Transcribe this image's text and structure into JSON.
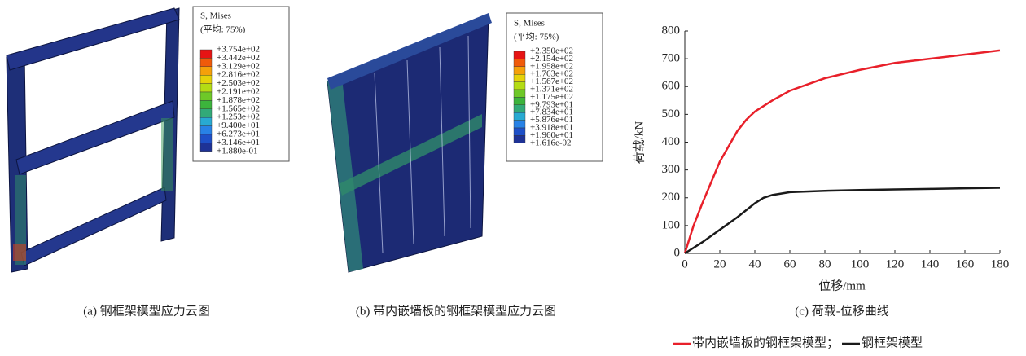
{
  "panel_a": {
    "caption": "(a) 钢框架模型应力云图",
    "legend_title": "S, Mises",
    "legend_subtitle": "(平均: 75%)",
    "legend_labels": [
      "+3.754e+02",
      "+3.442e+02",
      "+3.129e+02",
      "+2.816e+02",
      "+2.503e+02",
      "+2.191e+02",
      "+1.878e+02",
      "+1.565e+02",
      "+1.253e+02",
      "+9.400e+01",
      "+6.273e+01",
      "+3.146e+01",
      "+1.880e-01"
    ]
  },
  "panel_b": {
    "caption": "(b) 带内嵌墙板的钢框架模型应力云图",
    "legend_title": "S, Mises",
    "legend_subtitle": "(平均: 75%)",
    "legend_labels": [
      "+2.350e+02",
      "+2.154e+02",
      "+1.958e+02",
      "+1.763e+02",
      "+1.567e+02",
      "+1.371e+02",
      "+1.175e+02",
      "+9.793e+01",
      "+7.834e+01",
      "+5.876e+01",
      "+3.918e+01",
      "+1.960e+01",
      "+1.616e-02"
    ]
  },
  "chart_data": {
    "type": "line",
    "caption": "(c) 荷载-位移曲线",
    "xlabel": "位移/mm",
    "ylabel": "荷载/kN",
    "xlim": [
      0,
      180
    ],
    "xticks": [
      0,
      20,
      40,
      60,
      80,
      100,
      120,
      140,
      160,
      180
    ],
    "ylim": [
      0,
      800
    ],
    "yticks": [
      0,
      100,
      200,
      300,
      400,
      500,
      600,
      700,
      800
    ],
    "series": [
      {
        "name": "带内嵌墙板的钢框架模型；",
        "color": "#e8202a",
        "x": [
          0,
          5,
          10,
          20,
          30,
          35,
          40,
          50,
          60,
          80,
          100,
          120,
          140,
          160,
          180
        ],
        "values": [
          0,
          100,
          180,
          330,
          440,
          480,
          510,
          550,
          585,
          630,
          660,
          685,
          700,
          715,
          730
        ]
      },
      {
        "name": "钢框架模型",
        "color": "#1a1a1a",
        "x": [
          0,
          10,
          20,
          30,
          40,
          45,
          50,
          60,
          80,
          100,
          120,
          140,
          160,
          180
        ],
        "values": [
          0,
          40,
          85,
          130,
          180,
          200,
          210,
          220,
          225,
          228,
          230,
          232,
          234,
          236
        ]
      }
    ]
  }
}
